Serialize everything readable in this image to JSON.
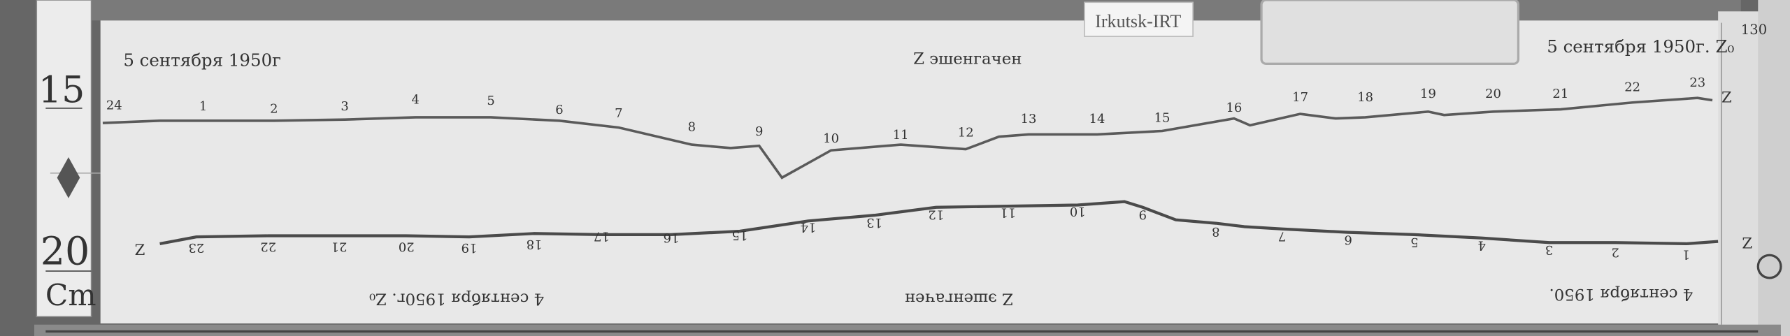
{
  "station_label": "Irkutsk-IRT",
  "ruler": {
    "mark_15": "15",
    "mark_20": "20",
    "unit": "Cm"
  },
  "upper_record": {
    "date_left": "5 сентября 1950г",
    "component_title": "Z эшенгачен",
    "date_right": "5 сентября 1950г. Z₀",
    "trace_end_label": "Z",
    "hour_marks": [
      "24",
      "1",
      "2",
      "3",
      "4",
      "5",
      "6",
      "7",
      "8",
      "9",
      "10",
      "11",
      "12",
      "13",
      "14",
      "15",
      "16",
      "17",
      "18",
      "19",
      "20",
      "21",
      "22",
      "23"
    ]
  },
  "lower_record": {
    "date_left": "4 сентября 1950г. Z₀",
    "component_title": "Z эшенгачен",
    "date_right": "4 сентября 1950.",
    "trace_start_label": "Z",
    "trace_end_label": "Z",
    "hour_marks": [
      "23",
      "22",
      "21",
      "20",
      "19",
      "18",
      "17",
      "16",
      "15",
      "14",
      "13",
      "12",
      "11",
      "10",
      "9",
      "8",
      "7",
      "6",
      "5",
      "4",
      "3",
      "2",
      "1"
    ]
  },
  "margin_note": "130",
  "colors": {
    "paper": "#e9e9e9",
    "trace": "#555555",
    "wood": "#6b6b6b"
  }
}
